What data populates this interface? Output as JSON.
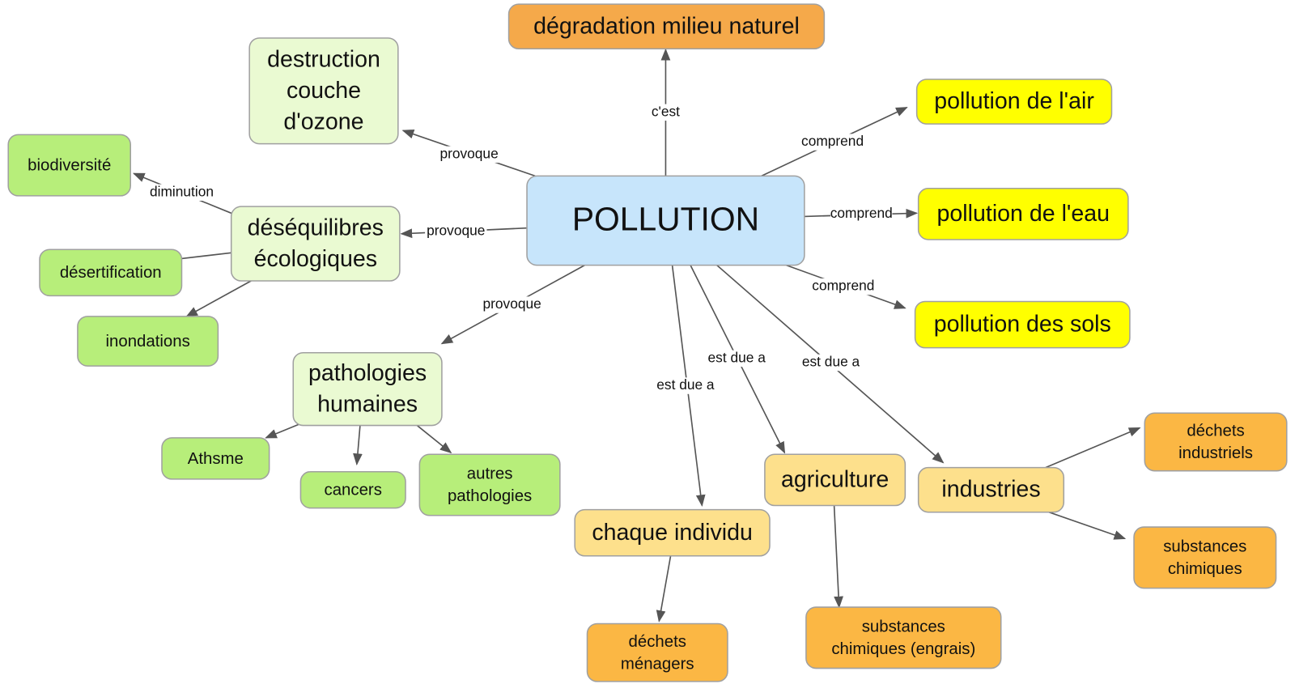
{
  "nodes": [
    {
      "lines": [
        "POLLUTION"
      ]
    },
    {
      "lines": [
        "dégradation milieu naturel"
      ]
    },
    {
      "lines": [
        "destruction",
        "couche",
        "d'ozone"
      ]
    },
    {
      "lines": [
        "pollution de l'air"
      ]
    },
    {
      "lines": [
        "pollution de l'eau"
      ]
    },
    {
      "lines": [
        "pollution des sols"
      ]
    },
    {
      "lines": [
        "biodiversité"
      ]
    },
    {
      "lines": [
        "déséquilibres",
        "écologiques"
      ]
    },
    {
      "lines": [
        "désertification"
      ]
    },
    {
      "lines": [
        "inondations"
      ]
    },
    {
      "lines": [
        "pathologies",
        "humaines"
      ]
    },
    {
      "lines": [
        "Athsme"
      ]
    },
    {
      "lines": [
        "cancers"
      ]
    },
    {
      "lines": [
        "autres",
        "pathologies"
      ]
    },
    {
      "lines": [
        "chaque individu"
      ]
    },
    {
      "lines": [
        "agriculture"
      ]
    },
    {
      "lines": [
        "industries"
      ]
    },
    {
      "lines": [
        "déchets",
        "industriels"
      ]
    },
    {
      "lines": [
        "substances",
        "chimiques"
      ]
    },
    {
      "lines": [
        "déchets",
        "ménagers"
      ]
    },
    {
      "lines": [
        "substances",
        "chimiques (engrais)"
      ]
    }
  ],
  "links": [
    {
      "label": "c'est"
    },
    {
      "label": "comprend"
    },
    {
      "label": "comprend"
    },
    {
      "label": "comprend"
    },
    {
      "label": "provoque"
    },
    {
      "label": "provoque"
    },
    {
      "label": "provoque"
    },
    {
      "label": "diminution"
    },
    {
      "label": "est due a"
    },
    {
      "label": "est due a"
    },
    {
      "label": "est due a"
    }
  ]
}
